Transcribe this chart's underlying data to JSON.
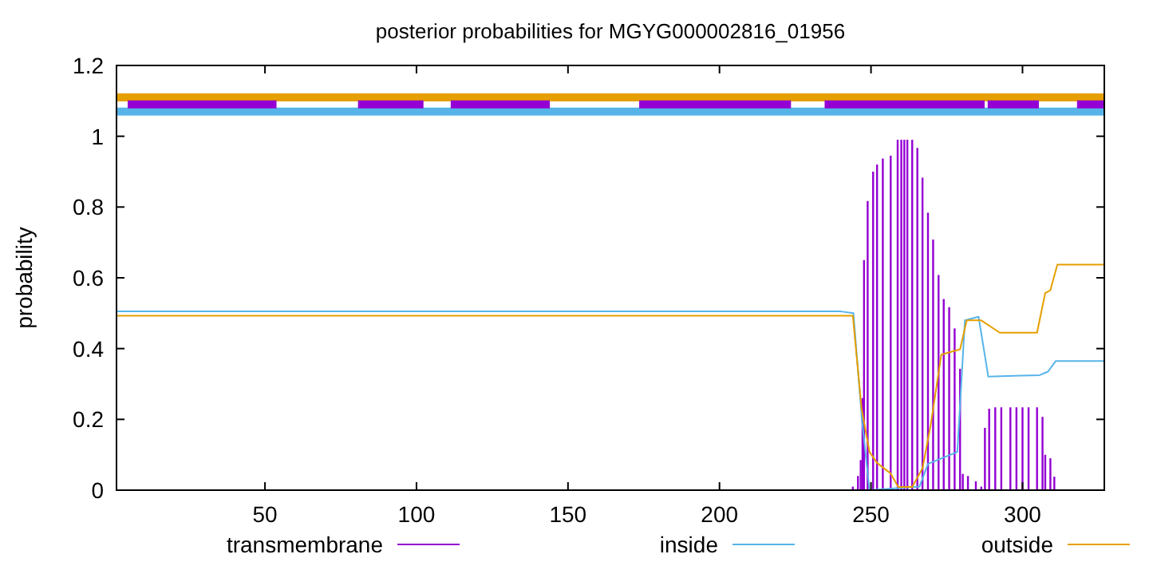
{
  "chart_data": {
    "type": "line",
    "title": "posterior probabilities for MGYG000002816_01956",
    "ylabel": "probability",
    "xlim": [
      1,
      327
    ],
    "ylim": [
      0,
      1.2
    ],
    "xticks": [
      50,
      100,
      150,
      200,
      250,
      300
    ],
    "yticks": [
      0,
      0.2,
      0.4,
      0.6,
      0.8,
      1,
      1.2
    ],
    "legend": "bottom",
    "grid": false,
    "series": [
      {
        "name": "transmembrane",
        "type": "bar",
        "color": "#9400d3",
        "x": [
          244,
          245.7,
          246.6,
          247.2,
          247.7,
          248.9,
          250.7,
          252,
          253.9,
          256.5,
          258.8,
          260,
          261,
          262,
          263.6,
          265.3,
          267,
          268.8,
          270.5,
          272.3,
          274,
          275.8,
          277.6,
          279.4,
          280.3,
          282,
          284.6,
          286.4,
          287.6,
          289,
          291,
          293,
          296,
          298,
          300,
          302,
          304.8,
          306.6,
          307.5,
          309.2,
          310.5
        ],
        "values": [
          0.01,
          0.04,
          0.085,
          0.26,
          0.65,
          0.817,
          0.9,
          0.92,
          0.937,
          0.945,
          0.99,
          0.99,
          0.99,
          0.99,
          0.99,
          0.967,
          0.883,
          0.784,
          0.708,
          0.608,
          0.54,
          0.517,
          0.457,
          0.343,
          0.046,
          0.04,
          0.025,
          0.01,
          0.176,
          0.23,
          0.234,
          0.234,
          0.234,
          0.234,
          0.234,
          0.234,
          0.234,
          0.207,
          0.1,
          0.09,
          0.038
        ]
      },
      {
        "name": "inside",
        "color": "#56b4e9",
        "x": [
          1,
          240,
          244.2,
          247,
          249.5,
          266,
          268.8,
          278.5,
          281,
          285.5,
          288.7,
          305.7,
          308.4,
          311,
          327
        ],
        "values": [
          0.505,
          0.505,
          0.5,
          0.2,
          0,
          0.01,
          0.074,
          0.108,
          0.48,
          0.49,
          0.321,
          0.325,
          0.335,
          0.365,
          0.365
        ]
      },
      {
        "name": "outside",
        "color": "#e69f00",
        "x": [
          1,
          244,
          246.9,
          249.5,
          252,
          256.5,
          259,
          263.6,
          267,
          269.7,
          273.2,
          279.4,
          281.6,
          286.3,
          292.5,
          304.8,
          307.5,
          309.2,
          311.5,
          327
        ],
        "values": [
          0.493,
          0.493,
          0.23,
          0.108,
          0.077,
          0.047,
          0.009,
          0.009,
          0.062,
          0.184,
          0.383,
          0.398,
          0.48,
          0.48,
          0.445,
          0.445,
          0.557,
          0.565,
          0.637,
          0.637
        ]
      },
      {
        "type": "step",
        "color": "#e69f00",
        "x": [
          1,
          327
        ],
        "values": [
          1.11,
          1.11
        ]
      },
      {
        "type": "step",
        "color": "#56b4e9",
        "x": [
          1,
          327
        ],
        "values": [
          1.07,
          1.07
        ]
      },
      {
        "type": "step",
        "color": "#9400d3",
        "x": [
          4.7,
          53.8,
          54,
          80.7,
          102.3,
          103,
          111.3,
          144,
          145,
          173.5,
          223.6,
          224,
          234.7,
          287.5,
          288,
          288.5,
          305.4,
          306,
          318,
          327
        ],
        "values": [
          1.09,
          1.09,
          null,
          1.09,
          1.09,
          null,
          1.09,
          1.09,
          null,
          1.09,
          1.09,
          null,
          1.09,
          1.09,
          null,
          1.09,
          1.09,
          null,
          1.09,
          1.09
        ]
      }
    ]
  }
}
